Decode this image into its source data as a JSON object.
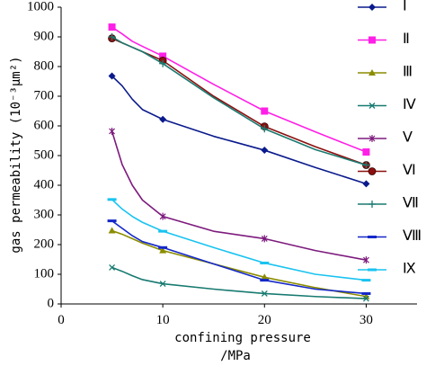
{
  "chart_data": {
    "type": "line",
    "xlabel": "confining pressure",
    "xlabel_unit": "/MPa",
    "ylabel": "gas permeability (10⁻³μm²)",
    "xlim": [
      0,
      35
    ],
    "ylim": [
      0,
      1000
    ],
    "x_ticks": [
      "0",
      "10",
      "20",
      "30"
    ],
    "y_ticks": [
      "0",
      "100",
      "200",
      "300",
      "400",
      "500",
      "600",
      "700",
      "800",
      "900",
      "1000"
    ],
    "legend_position": "right",
    "grid": false,
    "series": [
      {
        "name": "Ⅰ",
        "color": "#0a1a8c",
        "marker": "diamond",
        "x": [
          5,
          6,
          7,
          8,
          10,
          15,
          20,
          25,
          30
        ],
        "y": [
          768,
          735,
          690,
          655,
          622,
          565,
          518,
          460,
          405
        ]
      },
      {
        "name": "Ⅱ",
        "color": "#ff1fe6",
        "marker": "square",
        "x": [
          5,
          6,
          7,
          8,
          10,
          15,
          20,
          25,
          30
        ],
        "y": [
          933,
          910,
          885,
          868,
          835,
          740,
          650,
          580,
          512
        ]
      },
      {
        "name": "Ⅲ",
        "color": "#8c8c00",
        "marker": "triangle",
        "x": [
          5,
          6,
          7,
          8,
          10,
          15,
          20,
          25,
          30
        ],
        "y": [
          247,
          235,
          220,
          205,
          180,
          135,
          90,
          55,
          25
        ]
      },
      {
        "name": "Ⅳ",
        "color": "#177a70",
        "marker": "x",
        "x": [
          5,
          6,
          7,
          8,
          10,
          15,
          20,
          25,
          30
        ],
        "y": [
          123,
          110,
          95,
          82,
          68,
          50,
          35,
          25,
          18
        ]
      },
      {
        "name": "Ⅴ",
        "color": "#7d1a7d",
        "marker": "asterisk",
        "x": [
          5,
          6,
          7,
          8,
          10,
          15,
          20,
          25,
          30
        ],
        "y": [
          582,
          470,
          400,
          350,
          295,
          245,
          220,
          180,
          148
        ]
      },
      {
        "name": "Ⅵ",
        "color": "#8c0f0f",
        "marker": "circle",
        "x": [
          5,
          6,
          7,
          8,
          10,
          15,
          20,
          25,
          30
        ],
        "y": [
          895,
          880,
          865,
          850,
          820,
          700,
          598,
          530,
          468
        ]
      },
      {
        "name": "Ⅶ",
        "color": "#1a7a70",
        "marker": "plus",
        "x": [
          5,
          6,
          7,
          8,
          10,
          15,
          20,
          25,
          30
        ],
        "y": [
          900,
          880,
          865,
          850,
          810,
          695,
          590,
          520,
          468
        ]
      },
      {
        "name": "Ⅷ",
        "color": "#1428c8",
        "marker": "bar",
        "x": [
          5,
          6,
          7,
          8,
          10,
          15,
          20,
          25,
          30
        ],
        "y": [
          280,
          255,
          230,
          210,
          190,
          135,
          80,
          50,
          35
        ]
      },
      {
        "name": "Ⅸ",
        "color": "#19c3f0",
        "marker": "bar",
        "x": [
          5,
          6,
          7,
          8,
          10,
          15,
          20,
          25,
          30
        ],
        "y": [
          352,
          320,
          295,
          275,
          245,
          190,
          138,
          100,
          80
        ]
      }
    ]
  }
}
